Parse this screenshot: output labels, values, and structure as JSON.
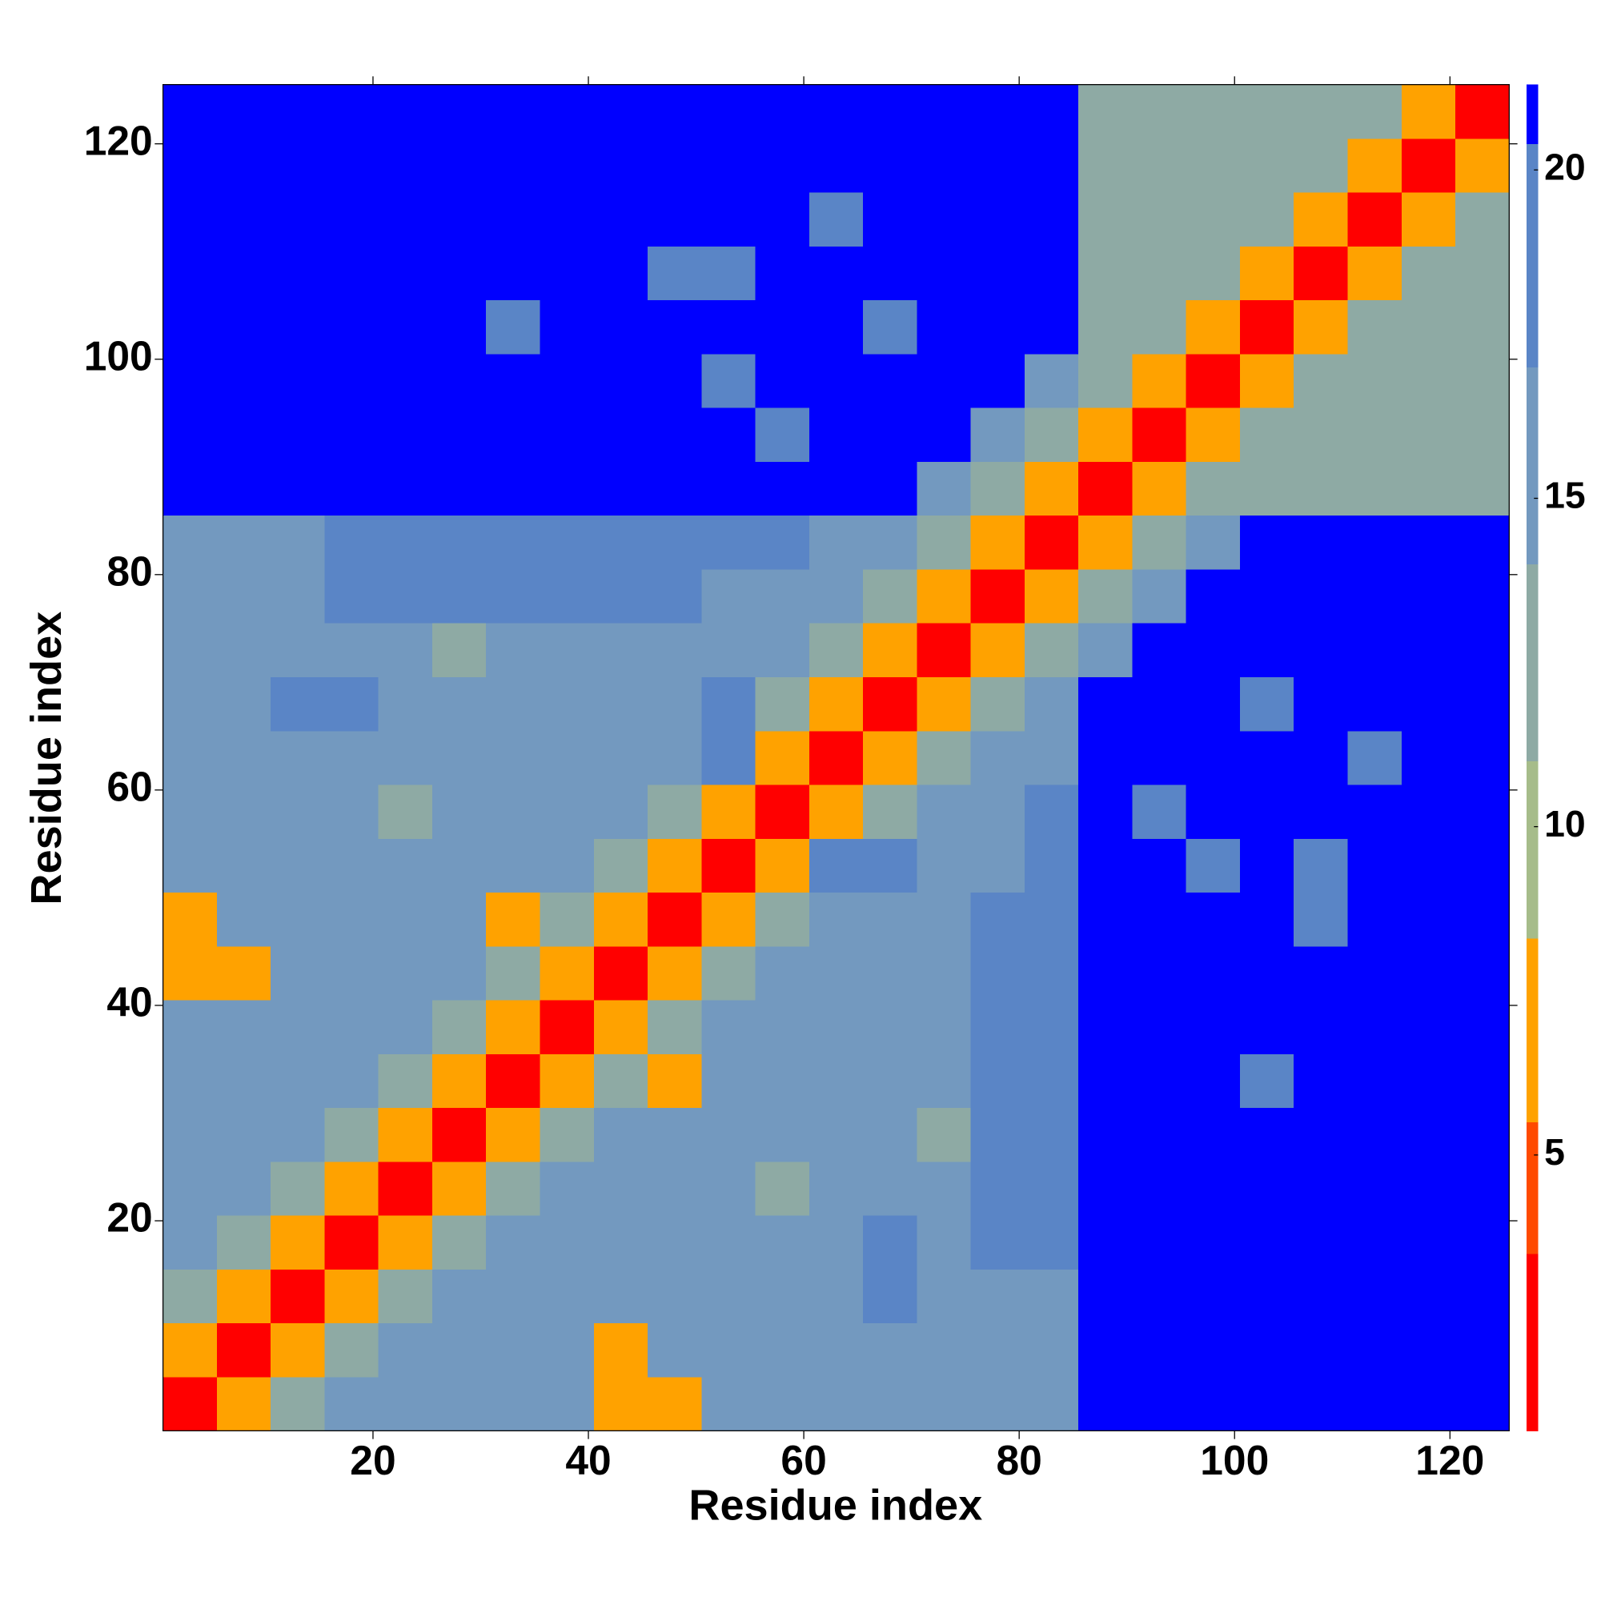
{
  "chart_data": {
    "type": "heatmap",
    "xlabel": "Residue index",
    "ylabel": "Residue index",
    "xbins": [
      0.5,
      5.5,
      10.5,
      15.5,
      20.5,
      25.5,
      30.5,
      35.5,
      40.5,
      45.5,
      50.5,
      55.5,
      60.5,
      65.5,
      70.5,
      75.5,
      80.5,
      85.5,
      90.5,
      95.5,
      100.5,
      105.5,
      110.5,
      115.5,
      120.5,
      125.5
    ],
    "ybins": [
      0.5,
      5.5,
      10.5,
      15.5,
      20.5,
      25.5,
      30.5,
      35.5,
      40.5,
      45.5,
      50.5,
      55.5,
      60.5,
      65.5,
      70.5,
      75.5,
      80.5,
      85.5,
      90.5,
      95.5,
      100.5,
      105.5,
      110.5,
      115.5,
      120.5,
      125.5
    ],
    "xlim": [
      0.5,
      125.5
    ],
    "ylim": [
      0.5,
      125.5
    ],
    "xticks": [
      20,
      40,
      60,
      80,
      100,
      120
    ],
    "yticks": [
      20,
      40,
      60,
      80,
      100,
      120
    ],
    "clim": [
      0.8,
      21.3
    ],
    "cticks": [
      5,
      10,
      15,
      20
    ],
    "levels": [
      0.8,
      3.5,
      5.5,
      8.3,
      11,
      14,
      17,
      20.4,
      21.3
    ],
    "colors": [
      "#ff0000",
      "#ff4a00",
      "#ffa200",
      "#a6bc8a",
      "#8eaaa4",
      "#7399bf",
      "#5a85c6",
      "#0000ff"
    ],
    "z": [
      [
        3,
        8,
        11,
        15,
        15,
        15,
        15,
        15,
        7,
        7,
        15,
        15,
        15,
        15,
        15,
        15,
        15,
        21,
        21,
        21,
        21,
        21,
        21,
        21,
        21
      ],
      [
        8,
        3,
        8,
        11,
        15,
        15,
        15,
        15,
        7,
        15,
        15,
        15,
        15,
        15,
        15,
        15,
        15,
        21,
        21,
        21,
        21,
        21,
        21,
        21,
        21
      ],
      [
        11,
        8,
        3,
        8,
        11,
        15,
        15,
        15,
        15,
        15,
        15,
        15,
        15,
        18,
        15,
        15,
        15,
        21,
        21,
        21,
        21,
        21,
        21,
        21,
        21
      ],
      [
        15,
        11,
        8,
        3,
        8,
        11,
        15,
        15,
        15,
        15,
        15,
        15,
        15,
        19,
        15,
        17,
        19,
        21,
        21,
        21,
        21,
        21,
        21,
        21,
        21
      ],
      [
        15,
        15,
        11,
        8,
        3,
        8,
        11,
        15,
        15,
        15,
        15,
        12,
        15,
        15,
        15,
        17,
        19,
        21,
        21,
        21,
        21,
        21,
        21,
        21,
        21
      ],
      [
        15,
        15,
        15,
        11,
        8,
        3,
        8,
        11,
        15,
        15,
        15,
        15,
        15,
        15,
        12,
        17,
        19,
        21,
        21,
        21,
        21,
        21,
        21,
        21,
        21
      ],
      [
        15,
        15,
        15,
        15,
        11,
        8,
        3,
        8,
        11,
        7,
        15,
        15,
        15,
        15,
        15,
        17,
        19,
        21,
        21,
        21,
        19,
        21,
        21,
        21,
        21
      ],
      [
        15,
        15,
        15,
        15,
        15,
        11,
        8,
        3,
        8,
        11,
        15,
        15,
        15,
        15,
        15,
        17,
        19,
        21,
        21,
        21,
        21,
        21,
        21,
        21,
        21
      ],
      [
        7,
        7,
        15,
        15,
        15,
        15,
        11,
        8,
        3,
        8,
        11,
        15,
        15,
        15,
        15,
        17,
        19,
        21,
        21,
        21,
        21,
        21,
        21,
        21,
        21
      ],
      [
        7,
        15,
        15,
        15,
        15,
        15,
        7,
        11,
        8,
        3,
        8,
        11,
        15,
        15,
        15,
        17,
        19,
        21,
        21,
        21,
        21,
        19,
        21,
        21,
        21
      ],
      [
        15,
        15,
        15,
        15,
        15,
        15,
        15,
        15,
        11,
        8,
        3,
        8,
        19,
        19,
        15,
        15,
        19,
        21,
        21,
        19,
        21,
        19,
        21,
        21,
        21
      ],
      [
        15,
        15,
        15,
        15,
        12,
        15,
        15,
        15,
        15,
        11,
        8,
        3,
        8,
        11,
        15,
        15,
        19,
        21,
        19,
        21,
        21,
        21,
        21,
        21,
        21
      ],
      [
        15,
        15,
        15,
        15,
        15,
        15,
        15,
        15,
        15,
        15,
        19,
        8,
        3,
        8,
        11,
        15,
        15,
        21,
        21,
        21,
        21,
        21,
        19,
        21,
        21
      ],
      [
        15,
        15,
        18,
        19,
        15,
        15,
        15,
        15,
        15,
        15,
        19,
        11,
        8,
        3,
        8,
        11,
        15,
        21,
        21,
        21,
        19,
        21,
        21,
        21,
        21
      ],
      [
        15,
        15,
        15,
        15,
        15,
        12,
        15,
        15,
        15,
        15,
        15,
        15,
        11,
        8,
        3,
        8,
        11,
        14,
        21,
        21,
        21,
        21,
        21,
        21,
        21
      ],
      [
        15,
        15,
        15,
        17,
        17,
        17,
        17,
        17,
        17,
        17,
        15,
        15,
        15,
        11,
        8,
        3,
        8,
        11,
        14,
        21,
        21,
        21,
        21,
        21,
        21
      ],
      [
        15,
        15,
        15,
        19,
        19,
        19,
        19,
        19,
        19,
        19,
        19,
        19,
        15,
        15,
        11,
        8,
        3,
        8,
        11,
        14,
        21,
        21,
        21,
        21,
        21
      ],
      [
        21,
        21,
        21,
        21,
        21,
        21,
        21,
        21,
        21,
        21,
        21,
        21,
        21,
        21,
        14,
        11,
        8,
        3,
        8,
        11,
        13,
        13,
        11,
        13,
        13
      ],
      [
        21,
        21,
        21,
        21,
        21,
        21,
        21,
        21,
        21,
        21,
        21,
        19,
        21,
        21,
        21,
        14,
        11,
        8,
        3,
        8,
        11,
        13,
        13,
        13,
        13
      ],
      [
        21,
        21,
        21,
        21,
        21,
        21,
        21,
        21,
        21,
        21,
        19,
        21,
        21,
        21,
        21,
        21,
        14,
        11,
        8,
        3,
        8,
        11,
        13,
        11,
        13
      ],
      [
        21,
        21,
        21,
        21,
        21,
        21,
        19,
        21,
        21,
        21,
        21,
        21,
        21,
        19,
        21,
        21,
        21,
        13,
        11,
        8,
        3,
        8,
        11,
        13,
        13
      ],
      [
        21,
        21,
        21,
        21,
        21,
        21,
        21,
        21,
        21,
        19,
        19,
        21,
        21,
        21,
        21,
        21,
        21,
        13,
        13,
        11,
        8,
        3,
        8,
        11,
        13
      ],
      [
        21,
        21,
        21,
        21,
        21,
        21,
        21,
        21,
        21,
        21,
        21,
        21,
        19,
        21,
        21,
        21,
        21,
        11,
        13,
        13,
        11,
        8,
        3,
        8,
        11
      ],
      [
        21,
        21,
        21,
        21,
        21,
        21,
        21,
        21,
        21,
        21,
        21,
        21,
        21,
        21,
        21,
        21,
        21,
        13,
        13,
        11,
        13,
        11,
        8,
        3,
        8
      ],
      [
        21,
        21,
        21,
        21,
        21,
        21,
        21,
        21,
        21,
        21,
        21,
        21,
        21,
        21,
        21,
        21,
        21,
        13,
        13,
        13,
        13,
        13,
        11,
        8,
        3
      ]
    ]
  }
}
